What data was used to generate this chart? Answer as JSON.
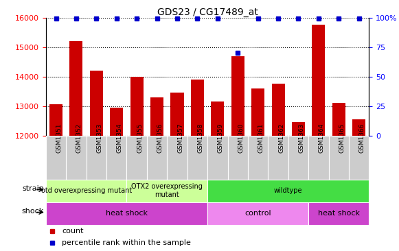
{
  "title": "GDS23 / CG17489_at",
  "samples": [
    "GSM1351",
    "GSM1352",
    "GSM1353",
    "GSM1354",
    "GSM1355",
    "GSM1356",
    "GSM1357",
    "GSM1358",
    "GSM1359",
    "GSM1360",
    "GSM1361",
    "GSM1362",
    "GSM1363",
    "GSM1364",
    "GSM1365",
    "GSM1366"
  ],
  "counts": [
    13050,
    15200,
    14200,
    12950,
    14000,
    13300,
    13450,
    13900,
    13150,
    14700,
    13600,
    13750,
    12450,
    15750,
    13100,
    12550
  ],
  "percentile_ranks": [
    99,
    99,
    99,
    99,
    99,
    99,
    99,
    99,
    99,
    70,
    99,
    99,
    99,
    99,
    99,
    99
  ],
  "bar_color": "#cc0000",
  "dot_color": "#0000cc",
  "ylim_left": [
    12000,
    16000
  ],
  "yticks_left": [
    12000,
    13000,
    14000,
    15000,
    16000
  ],
  "ylim_right": [
    0,
    100
  ],
  "yticks_right": [
    0,
    25,
    50,
    75,
    100
  ],
  "strain_groups": [
    {
      "label": "otd overexpressing mutant",
      "start": 0,
      "end": 4,
      "color": "#ccff99"
    },
    {
      "label": "OTX2 overexpressing\nmutant",
      "start": 4,
      "end": 8,
      "color": "#ccff99"
    },
    {
      "label": "wildtype",
      "start": 8,
      "end": 16,
      "color": "#44dd44"
    }
  ],
  "shock_groups": [
    {
      "label": "heat shock",
      "start": 0,
      "end": 8,
      "color": "#cc44cc"
    },
    {
      "label": "control",
      "start": 8,
      "end": 13,
      "color": "#ee88ee"
    },
    {
      "label": "heat shock",
      "start": 13,
      "end": 16,
      "color": "#cc44cc"
    }
  ],
  "legend_count_color": "#cc0000",
  "legend_dot_color": "#0000cc",
  "xtick_bg": "#cccccc",
  "plot_bg": "#ffffff"
}
